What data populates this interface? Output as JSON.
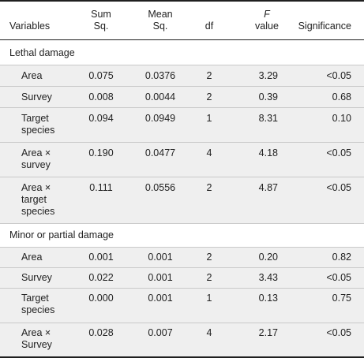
{
  "table": {
    "columns": {
      "variables": "Variables",
      "sum_sq_1": "Sum",
      "sum_sq_2": "Sq.",
      "mean_sq_1": "Mean",
      "mean_sq_2": "Sq.",
      "df": "df",
      "f_value_1": "F",
      "f_value_2": "value",
      "significance": "Significance"
    },
    "sections": [
      {
        "title": "Lethal damage",
        "rows": [
          {
            "variable": [
              "Area"
            ],
            "sum_sq": "0.075",
            "mean_sq": "0.0376",
            "df": "2",
            "f_value": "3.29",
            "significance": "<0.05"
          },
          {
            "variable": [
              "Survey"
            ],
            "sum_sq": "0.008",
            "mean_sq": "0.0044",
            "df": "2",
            "f_value": "0.39",
            "significance": "0.68"
          },
          {
            "variable": [
              "Target",
              "species"
            ],
            "sum_sq": "0.094",
            "mean_sq": "0.0949",
            "df": "1",
            "f_value": "8.31",
            "significance": "0.10"
          },
          {
            "variable": [
              "Area ×",
              "survey"
            ],
            "sum_sq": "0.190",
            "mean_sq": "0.0477",
            "df": "4",
            "f_value": "4.18",
            "significance": "<0.05"
          },
          {
            "variable": [
              "Area ×",
              "target",
              "species"
            ],
            "sum_sq": "0.111",
            "mean_sq": "0.0556",
            "df": "2",
            "f_value": "4.87",
            "significance": "<0.05"
          }
        ]
      },
      {
        "title": "Minor or partial damage",
        "rows": [
          {
            "variable": [
              "Area"
            ],
            "sum_sq": "0.001",
            "mean_sq": "0.001",
            "df": "2",
            "f_value": "0.20",
            "significance": "0.82"
          },
          {
            "variable": [
              "Survey"
            ],
            "sum_sq": "0.022",
            "mean_sq": "0.001",
            "df": "2",
            "f_value": "3.43",
            "significance": "<0.05"
          },
          {
            "variable": [
              "Target",
              "species"
            ],
            "sum_sq": "0.000",
            "mean_sq": "0.001",
            "df": "1",
            "f_value": "0.13",
            "significance": "0.75"
          },
          {
            "variable": [
              "Area ×",
              "Survey"
            ],
            "sum_sq": "0.028",
            "mean_sq": "0.007",
            "df": "4",
            "f_value": "2.17",
            "significance": "<0.05"
          }
        ]
      }
    ]
  }
}
